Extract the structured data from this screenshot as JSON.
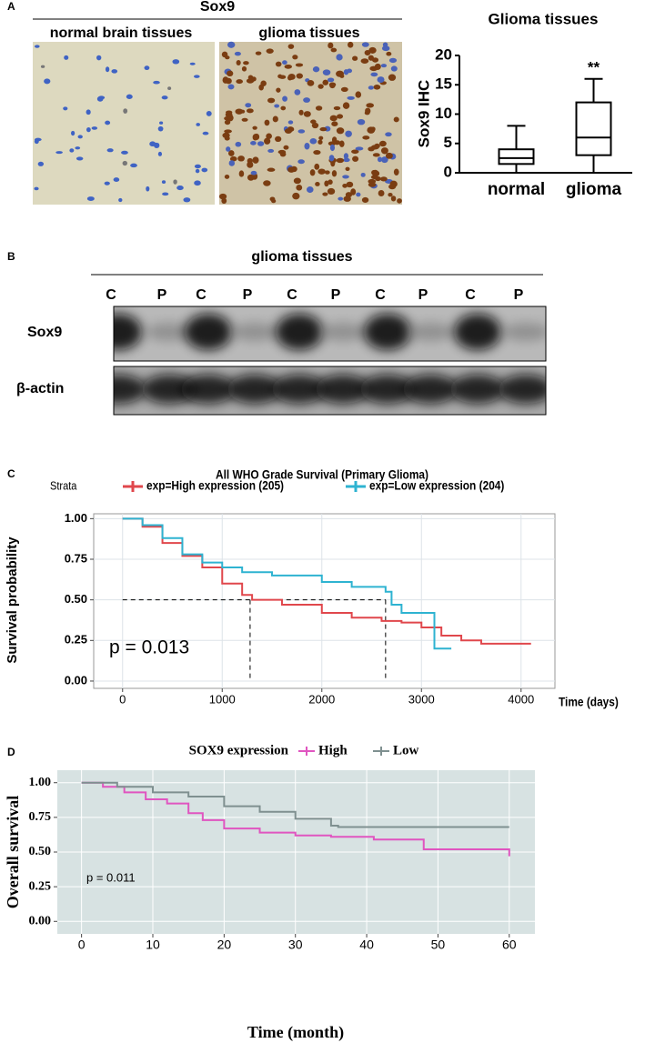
{
  "panel_a": {
    "label": "A",
    "title": "Sox9",
    "left_caption": "normal brain tissues",
    "right_caption": "glioma tissues"
  },
  "panel_b": {
    "label": "B",
    "title": "glioma tissues",
    "lanes": [
      "C",
      "P",
      "C",
      "P",
      "C",
      "P",
      "C",
      "P",
      "C",
      "P"
    ],
    "rows": [
      "Sox9",
      "β-actin"
    ]
  },
  "panel_c_label": "C",
  "panel_d_label": "D",
  "chart_data": [
    {
      "type": "box",
      "title": "Glioma tissues",
      "y_label": "Sox9 IHC",
      "categories": [
        "normal",
        "glioma"
      ],
      "min": [
        0,
        0
      ],
      "q1": [
        1.5,
        3
      ],
      "median": [
        2.5,
        6
      ],
      "q3": [
        4,
        12
      ],
      "max": [
        8,
        16
      ],
      "annotation": "**",
      "annotation_category": "glioma",
      "ylim": [
        0,
        20
      ],
      "yticks": [
        0,
        5,
        10,
        15,
        20
      ],
      "color": "#000000"
    },
    {
      "type": "step",
      "title": "All WHO Grade Survival (Primary Glioma)",
      "legend_title": "Strata",
      "x_label": "Time (days)",
      "y_label": "Survival probability",
      "annotation": "p = 0.013",
      "xlim": [
        -290,
        4340
      ],
      "ylim": [
        -0.045,
        1.03
      ],
      "xticks": [
        0,
        1000,
        2000,
        3000,
        4000
      ],
      "yticks": [
        {
          "value": 0,
          "label": "0.00"
        },
        {
          "value": 0.25,
          "label": "0.25"
        },
        {
          "value": 0.5,
          "label": "0.50"
        },
        {
          "value": 0.75,
          "label": "0.75"
        },
        {
          "value": 1,
          "label": "1.00"
        }
      ],
      "grid": true,
      "panel_color": "#ffffff",
      "grid_color": "#dde3e8",
      "median_lines": {
        "x": [
          1280,
          2640
        ],
        "y": 0.5
      },
      "series": [
        {
          "name": "exp=High expression (205)",
          "color": "#e0474c",
          "x": [
            0,
            200,
            400,
            600,
            800,
            1000,
            1200,
            1300,
            1600,
            2000,
            2300,
            2600,
            2800,
            3000,
            3200,
            3400,
            3600,
            4100
          ],
          "values": [
            1.0,
            0.95,
            0.85,
            0.77,
            0.7,
            0.6,
            0.53,
            0.5,
            0.47,
            0.42,
            0.39,
            0.37,
            0.36,
            0.33,
            0.28,
            0.25,
            0.23,
            0.23
          ]
        },
        {
          "name": "exp=Low expression (204)",
          "color": "#2eb3d1",
          "x": [
            0,
            200,
            400,
            600,
            800,
            1000,
            1200,
            1500,
            2000,
            2300,
            2640,
            2700,
            2800,
            3130,
            3300
          ],
          "values": [
            1.0,
            0.96,
            0.88,
            0.78,
            0.73,
            0.7,
            0.67,
            0.65,
            0.61,
            0.58,
            0.55,
            0.47,
            0.42,
            0.2,
            0.2
          ]
        }
      ]
    },
    {
      "type": "step",
      "legend_title": "SOX9 expression",
      "x_label": "Time (month)",
      "y_label": "Overall survival",
      "annotation": "p = 0.011",
      "xlim": [
        -3.4,
        63.6
      ],
      "ylim": [
        -0.09,
        1.09
      ],
      "xticks": [
        0,
        10,
        20,
        30,
        40,
        50,
        60
      ],
      "yticks": [
        {
          "value": 0,
          "label": "0.00"
        },
        {
          "value": 0.25,
          "label": "0.25"
        },
        {
          "value": 0.5,
          "label": "0.50"
        },
        {
          "value": 0.75,
          "label": "0.75"
        },
        {
          "value": 1,
          "label": "1.00"
        }
      ],
      "grid": true,
      "panel_color": "#d7e2e2",
      "grid_color": "#ffffff",
      "series": [
        {
          "name": "High",
          "color": "#e055c0",
          "x": [
            0,
            3,
            6,
            9,
            12,
            15,
            17,
            20,
            25,
            30,
            35,
            41,
            48,
            60
          ],
          "values": [
            1.0,
            0.97,
            0.93,
            0.88,
            0.85,
            0.78,
            0.73,
            0.67,
            0.64,
            0.62,
            0.61,
            0.59,
            0.52,
            0.47
          ]
        },
        {
          "name": "Low",
          "color": "#7f9090",
          "x": [
            0,
            5,
            10,
            15,
            20,
            25,
            30,
            35,
            36,
            60
          ],
          "values": [
            1.0,
            0.97,
            0.93,
            0.9,
            0.83,
            0.79,
            0.74,
            0.69,
            0.68,
            0.68
          ]
        }
      ]
    }
  ]
}
